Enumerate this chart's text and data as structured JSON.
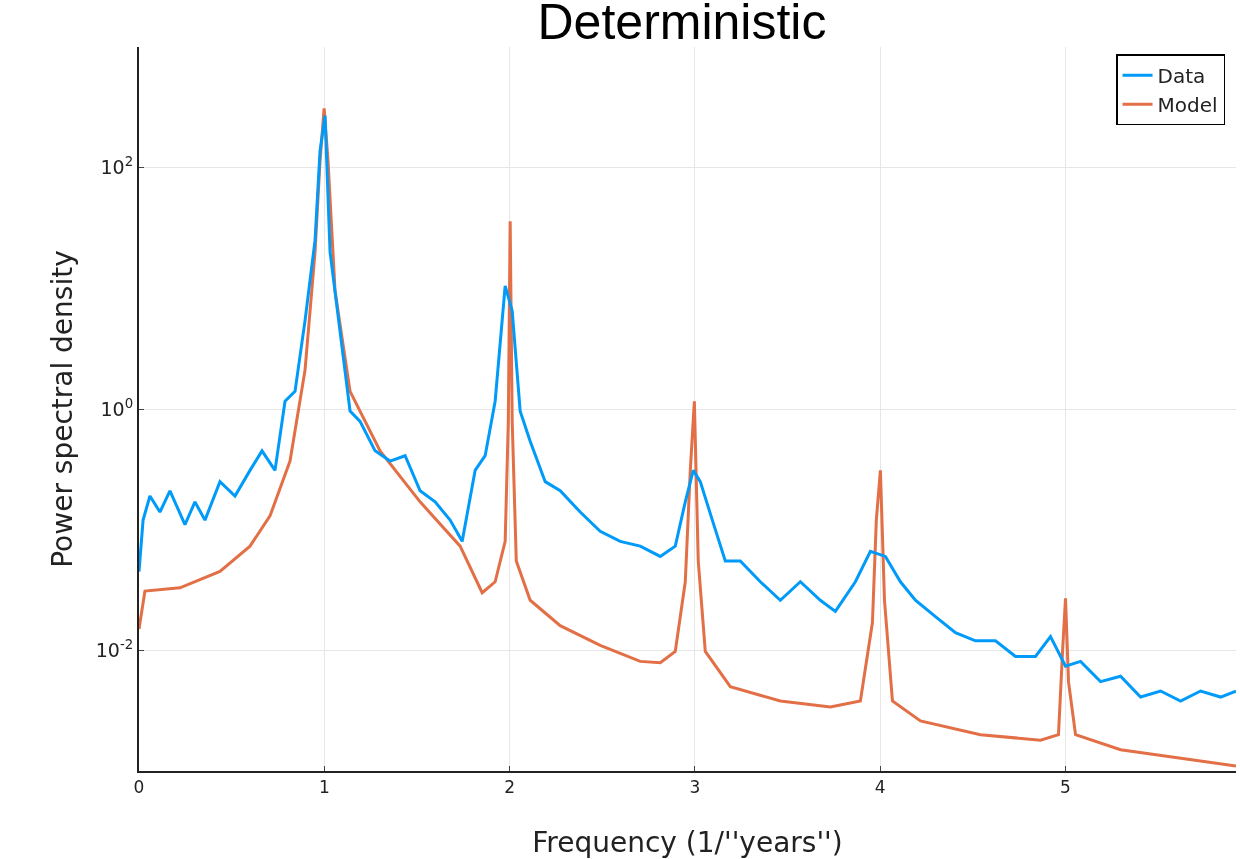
{
  "chart_data": {
    "type": "line",
    "title": "Deterministic",
    "xlabel": "Frequency (1/''years'')",
    "ylabel": "Power spectral density",
    "log": "y",
    "grid": true,
    "legend": "top right",
    "marker": "none",
    "line_style": "solid",
    "xlim": [
      0,
      5.92
    ],
    "xticks": [
      0,
      1,
      2,
      3,
      4,
      5
    ],
    "ylim": [
      0.001,
      1000
    ],
    "yticks": [
      {
        "value": 0.01,
        "label": "10$^{-2}$"
      },
      {
        "value": 1,
        "label": "10$^{0}$"
      },
      {
        "value": 100,
        "label": "10$^{2}$"
      }
    ],
    "series": [
      {
        "name": "Data",
        "color": "#009af9",
        "x": [
          0,
          0.022,
          0.059,
          0.113,
          0.167,
          0.248,
          0.302,
          0.356,
          0.437,
          0.518,
          0.599,
          0.664,
          0.734,
          0.788,
          0.842,
          0.896,
          0.95,
          0.977,
          1.004,
          1.031,
          1.085,
          1.139,
          1.193,
          1.274,
          1.355,
          1.436,
          1.517,
          1.598,
          1.679,
          1.744,
          1.814,
          1.868,
          1.922,
          1.976,
          2.014,
          2.057,
          2.111,
          2.192,
          2.273,
          2.381,
          2.489,
          2.597,
          2.705,
          2.813,
          2.894,
          2.948,
          2.991,
          3.029,
          3.094,
          3.164,
          3.245,
          3.353,
          3.461,
          3.569,
          3.677,
          3.758,
          3.866,
          3.947,
          4.028,
          4.109,
          4.19,
          4.298,
          4.406,
          4.514,
          4.622,
          4.73,
          4.838,
          4.919,
          5.0,
          5.081,
          5.189,
          5.297,
          5.405,
          5.513,
          5.621,
          5.729,
          5.837,
          5.92
        ],
        "values": [
          0.045,
          0.12,
          0.19,
          0.14,
          0.21,
          0.11,
          0.17,
          0.12,
          0.25,
          0.19,
          0.31,
          0.45,
          0.31,
          1.16,
          1.4,
          5.4,
          25,
          138,
          270,
          20,
          4.4,
          0.96,
          0.79,
          0.45,
          0.37,
          0.41,
          0.21,
          0.17,
          0.12,
          0.08,
          0.31,
          0.41,
          1.16,
          10.5,
          6.5,
          0.96,
          0.54,
          0.25,
          0.21,
          0.14,
          0.097,
          0.08,
          0.073,
          0.06,
          0.073,
          0.17,
          0.31,
          0.25,
          0.12,
          0.055,
          0.055,
          0.037,
          0.026,
          0.037,
          0.026,
          0.021,
          0.037,
          0.066,
          0.06,
          0.037,
          0.026,
          0.019,
          0.014,
          0.012,
          0.012,
          0.0089,
          0.0089,
          0.013,
          0.0074,
          0.0081,
          0.0055,
          0.0061,
          0.0041,
          0.0046,
          0.0038,
          0.0046,
          0.0041,
          0.0046
        ]
      },
      {
        "name": "Model",
        "color": "#e26f46",
        "x": [
          0,
          0.032,
          0.221,
          0.437,
          0.599,
          0.707,
          0.815,
          0.896,
          0.95,
          0.977,
          0.999,
          1.02,
          1.058,
          1.139,
          1.301,
          1.517,
          1.733,
          1.852,
          1.922,
          1.976,
          1.993,
          2.003,
          2.014,
          2.036,
          2.111,
          2.273,
          2.489,
          2.705,
          2.813,
          2.894,
          2.948,
          2.975,
          2.997,
          3.018,
          3.056,
          3.191,
          3.461,
          3.731,
          3.893,
          3.958,
          3.979,
          4.001,
          4.023,
          4.066,
          4.217,
          4.541,
          4.865,
          4.962,
          4.984,
          5.0,
          5.016,
          5.054,
          5.297,
          5.92
        ],
        "values": [
          0.015,
          0.031,
          0.033,
          0.045,
          0.073,
          0.13,
          0.37,
          2.1,
          20,
          114,
          310,
          114,
          9.5,
          1.4,
          0.45,
          0.17,
          0.073,
          0.03,
          0.037,
          0.08,
          0.79,
          36,
          0.79,
          0.055,
          0.026,
          0.016,
          0.011,
          0.0081,
          0.0079,
          0.0098,
          0.037,
          0.31,
          1.16,
          0.055,
          0.0098,
          0.005,
          0.0038,
          0.0034,
          0.0038,
          0.017,
          0.12,
          0.31,
          0.026,
          0.0038,
          0.0026,
          0.002,
          0.0018,
          0.002,
          0.0098,
          0.027,
          0.0055,
          0.002,
          0.0015,
          0.0011
        ]
      }
    ]
  }
}
